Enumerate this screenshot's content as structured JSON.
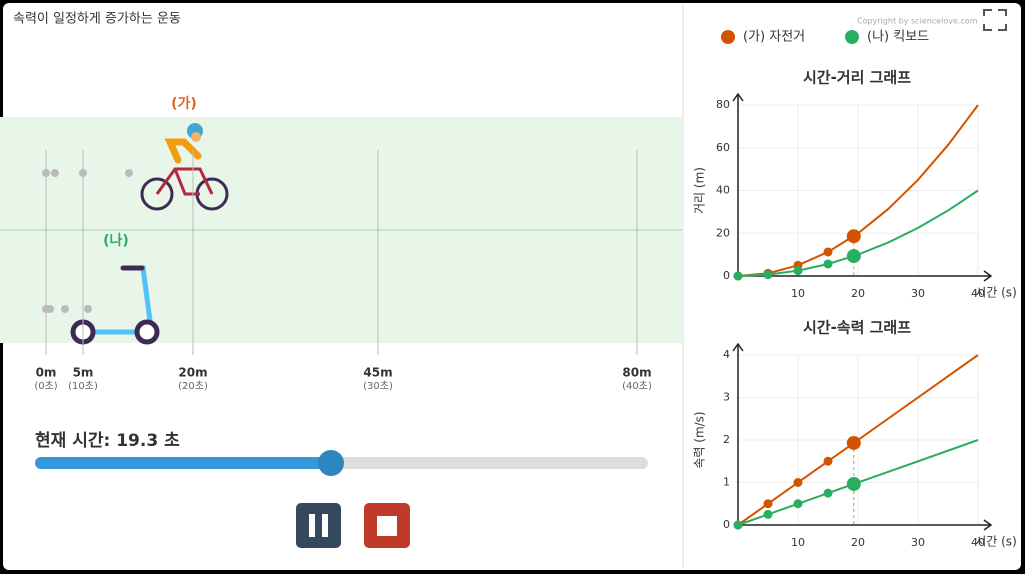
{
  "title": "속력이 일정하게 증가하는 운동",
  "copyright": "Copyright by sciencelove.com",
  "track": {
    "labels": [
      "(가)",
      "(나)"
    ],
    "markers": [
      {
        "distance": "0m",
        "time": "(0초)"
      },
      {
        "distance": "5m",
        "time": "(10초)"
      },
      {
        "distance": "20m",
        "time": "(20초)"
      },
      {
        "distance": "45m",
        "time": "(30초)"
      },
      {
        "distance": "80m",
        "time": "(40초)"
      }
    ]
  },
  "time_display": {
    "label": "현재 시간:",
    "value": 19.3,
    "unit": "초"
  },
  "legend": [
    {
      "name": "(가) 자전거",
      "color": "#d35400"
    },
    {
      "name": "(나) 킥보드",
      "color": "#27ae60"
    }
  ],
  "chart_data": [
    {
      "type": "line",
      "title": "시간-거리 그래프",
      "x_label": "시간 (s)",
      "y_label": "거리 (m)",
      "grid": true,
      "xlim": [
        0,
        40
      ],
      "ylim": [
        0,
        80
      ],
      "xticks": [
        10,
        20,
        30,
        40
      ],
      "yticks": [
        0,
        20,
        40,
        60,
        80
      ],
      "x": [
        0,
        5,
        10,
        15,
        20,
        25,
        30,
        35,
        40
      ],
      "markers_x": [
        0,
        5,
        10,
        15
      ],
      "current_x": 19.3,
      "series": [
        {
          "color": "#d35400",
          "values": [
            0,
            1.25,
            5,
            11.25,
            20,
            31.25,
            45,
            61.25,
            80
          ],
          "marker_values": [
            0,
            1.25,
            5,
            11.25
          ],
          "current_value": 18.62
        },
        {
          "color": "#27ae60",
          "values": [
            0,
            0.625,
            2.5,
            5.625,
            10,
            15.625,
            22.5,
            30.625,
            40
          ],
          "marker_values": [
            0,
            0.625,
            2.5,
            5.625
          ],
          "current_value": 9.31
        }
      ]
    },
    {
      "type": "line",
      "title": "시간-속력 그래프",
      "x_label": "시간 (s)",
      "y_label": "속력 (m/s)",
      "grid": true,
      "xlim": [
        0,
        40
      ],
      "ylim": [
        0,
        4
      ],
      "xticks": [
        10,
        20,
        30,
        40
      ],
      "yticks": [
        0,
        1,
        2,
        3,
        4
      ],
      "x": [
        0,
        40
      ],
      "markers_x": [
        0,
        5,
        10,
        15
      ],
      "current_x": 19.3,
      "series": [
        {
          "color": "#d35400",
          "values": [
            0,
            4
          ],
          "marker_values": [
            0,
            0.5,
            1,
            1.5
          ],
          "current_value": 1.93
        },
        {
          "color": "#27ae60",
          "values": [
            0,
            2
          ],
          "marker_values": [
            0,
            0.25,
            0.5,
            0.75
          ],
          "current_value": 0.965
        }
      ]
    }
  ]
}
